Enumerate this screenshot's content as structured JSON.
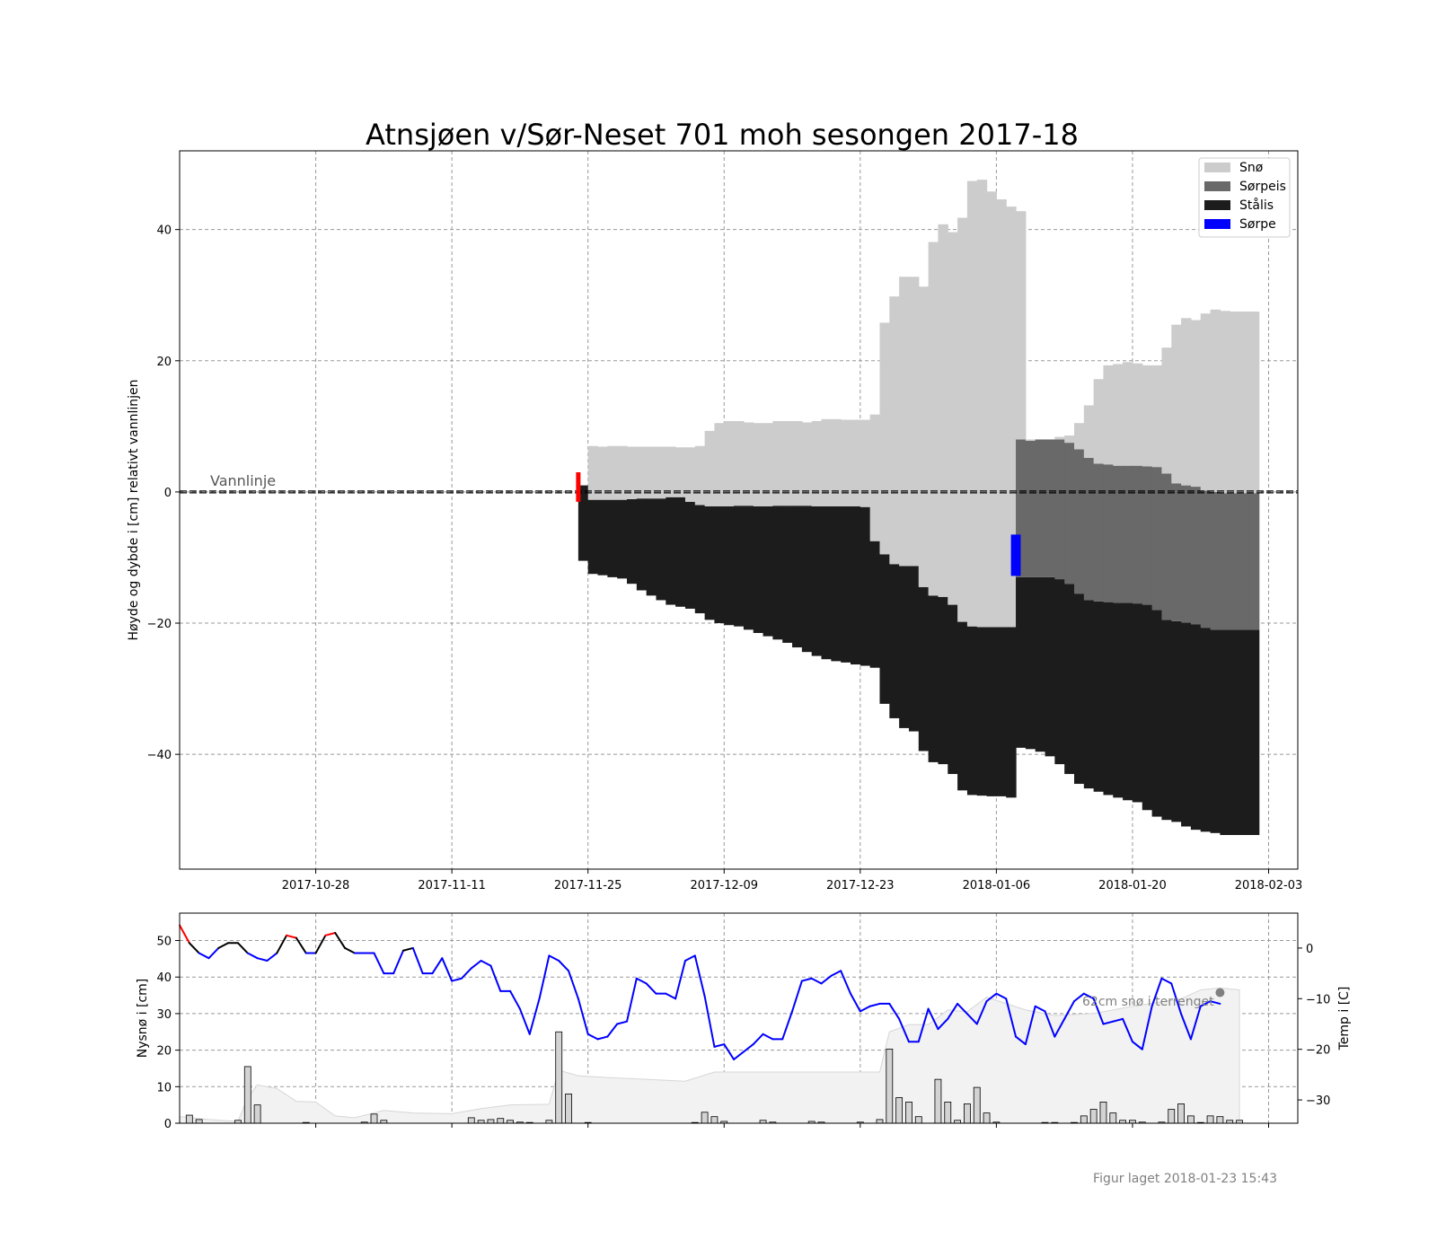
{
  "chart_data": [
    {
      "type": "bar",
      "title": "Atnsjøen v/Sør-Neset 701 moh sesongen 2017-18",
      "ylabel": "Høyde og dybde i [cm] relativt vannlinjen",
      "xlabel": "",
      "ylim": [
        -57.5,
        52
      ],
      "xlim": [
        "2017-10-14",
        "2018-02-06"
      ],
      "x_ticks": [
        "2017-10-28",
        "2017-11-11",
        "2017-11-25",
        "2017-12-09",
        "2017-12-23",
        "2018-01-06",
        "2018-01-20",
        "2018-02-03"
      ],
      "y_ticks": [
        -40,
        -20,
        0,
        20,
        40
      ],
      "grid": true,
      "legend_position": "top-right",
      "waterline_label": "Vannlinje",
      "waterline_value": 0,
      "colors": {
        "sno": "#cccccc",
        "sorpeis": "#696969",
        "stalis": "#1c1c1c",
        "sorpe": "#0000ff",
        "start": "#ff0000"
      },
      "series": [
        {
          "name": "Snø",
          "color": "#cccccc"
        },
        {
          "name": "Sørpeis",
          "color": "#696969"
        },
        {
          "name": "Stålis",
          "color": "#1c1c1c"
        },
        {
          "name": "Sørpe",
          "color": "#0000ff"
        }
      ],
      "ice_start": {
        "date": "2017-11-24",
        "from": -1.5,
        "to": 3
      },
      "dates": [
        "2017-11-24",
        "2017-11-25",
        "2017-11-26",
        "2017-11-27",
        "2017-11-28",
        "2017-11-29",
        "2017-11-30",
        "2017-12-01",
        "2017-12-02",
        "2017-12-03",
        "2017-12-04",
        "2017-12-05",
        "2017-12-06",
        "2017-12-07",
        "2017-12-08",
        "2017-12-09",
        "2017-12-10",
        "2017-12-11",
        "2017-12-12",
        "2017-12-13",
        "2017-12-14",
        "2017-12-15",
        "2017-12-16",
        "2017-12-17",
        "2017-12-18",
        "2017-12-19",
        "2017-12-20",
        "2017-12-21",
        "2017-12-22",
        "2017-12-23",
        "2017-12-24",
        "2017-12-25",
        "2017-12-26",
        "2017-12-27",
        "2017-12-28",
        "2017-12-29",
        "2017-12-30",
        "2017-12-31",
        "2018-01-01",
        "2018-01-02",
        "2018-01-03",
        "2018-01-04",
        "2018-01-05",
        "2018-01-06",
        "2018-01-07",
        "2018-01-08",
        "2018-01-09",
        "2018-01-10",
        "2018-01-11",
        "2018-01-12",
        "2018-01-13",
        "2018-01-14",
        "2018-01-15",
        "2018-01-16",
        "2018-01-17",
        "2018-01-18",
        "2018-01-19",
        "2018-01-20",
        "2018-01-21",
        "2018-01-22",
        "2018-01-23",
        "2018-01-24",
        "2018-01-25",
        "2018-01-26",
        "2018-01-27",
        "2018-01-28",
        "2018-01-29",
        "2018-01-30",
        "2018-01-31",
        "2018-02-01"
      ],
      "stalis_top": [
        1,
        -1.2,
        -1.2,
        -1.2,
        -1.2,
        -1.1,
        -1.0,
        -1.0,
        -1.0,
        -0.8,
        -0.8,
        -1.5,
        -2.0,
        -2.2,
        -2.2,
        -2.2,
        -2.1,
        -2.1,
        -2.2,
        -2.2,
        -2.1,
        -2.1,
        -2.1,
        -2.1,
        -2.2,
        -2.2,
        -2.2,
        -2.2,
        -2.2,
        -2.3,
        -7.5,
        -9.5,
        -11.0,
        -11.3,
        -11.3,
        -14.5,
        -15.8,
        -16.0,
        -17.2,
        -19.8,
        -20.5,
        -20.6,
        -20.6,
        -20.6,
        -20.6,
        -13.0,
        -13.0,
        -13.0,
        -13.0,
        -13.3,
        -14.0,
        -15.5,
        -16.5,
        -16.7,
        -16.8,
        -16.9,
        -16.9,
        -17.0,
        -17.2,
        -18.0,
        -19.5,
        -19.7,
        -19.9,
        -20.2,
        -20.7,
        -21.0,
        -21.0,
        -21.0,
        -21.0,
        -21.0
      ],
      "stalis_bottom": [
        -10.5,
        -12.5,
        -12.7,
        -13.0,
        -13.2,
        -14.0,
        -15.0,
        -15.8,
        -16.5,
        -17.2,
        -17.5,
        -17.8,
        -18.5,
        -19.5,
        -20.0,
        -20.3,
        -20.5,
        -21.0,
        -21.5,
        -22.0,
        -22.5,
        -23.0,
        -23.7,
        -24.4,
        -25.0,
        -25.5,
        -25.8,
        -26.0,
        -26.3,
        -26.5,
        -26.8,
        -32.3,
        -34.5,
        -36.0,
        -36.5,
        -39.5,
        -41.2,
        -41.5,
        -43.0,
        -45.5,
        -46.2,
        -46.3,
        -46.4,
        -46.4,
        -46.6,
        -39.0,
        -39.2,
        -39.6,
        -40.3,
        -41.5,
        -43.0,
        -44.5,
        -45.2,
        -45.7,
        -46.2,
        -46.6,
        -47.0,
        -47.3,
        -48.5,
        -49.5,
        -50.0,
        -50.3,
        -51.0,
        -51.5,
        -51.8,
        -52.0,
        -52.3,
        -52.3,
        -52.3,
        -52.3
      ],
      "sorpeis_top": [
        null,
        null,
        null,
        null,
        null,
        null,
        null,
        null,
        null,
        null,
        null,
        null,
        null,
        null,
        null,
        null,
        null,
        null,
        null,
        null,
        null,
        null,
        null,
        null,
        null,
        null,
        null,
        null,
        null,
        null,
        null,
        null,
        null,
        null,
        null,
        null,
        null,
        null,
        null,
        null,
        null,
        null,
        null,
        null,
        null,
        8.0,
        7.8,
        8.0,
        8.0,
        8.0,
        7.5,
        6.5,
        5.2,
        4.3,
        4.2,
        4.0,
        4.0,
        4.0,
        3.9,
        3.8,
        2.8,
        1.3,
        1.0,
        0.8,
        0.2,
        0,
        -0.2,
        -0.2,
        -0.2,
        -0.2
      ],
      "sno_top": [
        1,
        7.0,
        6.9,
        7.0,
        7.0,
        6.9,
        6.9,
        6.9,
        6.9,
        6.9,
        6.8,
        6.8,
        7.0,
        9.3,
        10.5,
        10.8,
        10.8,
        10.6,
        10.5,
        10.5,
        10.8,
        10.8,
        10.8,
        10.6,
        10.8,
        11.1,
        11.1,
        11.0,
        11.0,
        11.0,
        11.8,
        25.8,
        29.8,
        32.8,
        32.8,
        31.3,
        38.1,
        40.8,
        39.6,
        41.8,
        47.4,
        47.6,
        45.8,
        44.6,
        43.5,
        42.8,
        8.0,
        8.0,
        8.0,
        8.4,
        8.6,
        10.5,
        13.2,
        17.2,
        19.3,
        19.5,
        19.8,
        19.6,
        19.3,
        19.3,
        22.0,
        25.5,
        26.5,
        26.2,
        27.2,
        27.8,
        27.6,
        27.5,
        27.5,
        27.5
      ],
      "sorpe": {
        "date": "2018-01-08",
        "from": -12.8,
        "to": -6.5
      }
    },
    {
      "type": "bar",
      "xlabel": "",
      "ylabel": "Nysnø i [cm]",
      "ylabel_right": "Temp i [C]",
      "ylim": [
        0,
        57.5
      ],
      "ylim_right": [
        -34.6,
        6.9
      ],
      "y_ticks": [
        0,
        10,
        20,
        30,
        40,
        50
      ],
      "y_ticks_right": [
        0,
        -10,
        -20,
        -30
      ],
      "grid": true,
      "annotation": "62cm snø i terrenget",
      "colors": {
        "bars": "#d3d3d3",
        "area": "#f2f2f2",
        "temp": "#0000ff",
        "warm": "#ff0000",
        "near_zero": "#000000",
        "marker": "#808080"
      },
      "new_snow": [
        {
          "date": "2017-10-15",
          "value": 2.2
        },
        {
          "date": "2017-10-16",
          "value": 1.0
        },
        {
          "date": "2017-10-20",
          "value": 0.8
        },
        {
          "date": "2017-10-21",
          "value": 15.5
        },
        {
          "date": "2017-10-22",
          "value": 5.0
        },
        {
          "date": "2017-10-27",
          "value": 0.2
        },
        {
          "date": "2017-11-02",
          "value": 0.3
        },
        {
          "date": "2017-11-03",
          "value": 2.5
        },
        {
          "date": "2017-11-04",
          "value": 0.8
        },
        {
          "date": "2017-11-13",
          "value": 1.5
        },
        {
          "date": "2017-11-14",
          "value": 0.8
        },
        {
          "date": "2017-11-15",
          "value": 1.0
        },
        {
          "date": "2017-11-16",
          "value": 1.3
        },
        {
          "date": "2017-11-17",
          "value": 0.8
        },
        {
          "date": "2017-11-18",
          "value": 0.3
        },
        {
          "date": "2017-11-19",
          "value": 0.2
        },
        {
          "date": "2017-11-21",
          "value": 0.8
        },
        {
          "date": "2017-11-22",
          "value": 25.0
        },
        {
          "date": "2017-11-23",
          "value": 8.0
        },
        {
          "date": "2017-11-25",
          "value": 0.2
        },
        {
          "date": "2017-12-06",
          "value": 0.2
        },
        {
          "date": "2017-12-07",
          "value": 3.0
        },
        {
          "date": "2017-12-08",
          "value": 1.8
        },
        {
          "date": "2017-12-09",
          "value": 0.5
        },
        {
          "date": "2017-12-13",
          "value": 0.8
        },
        {
          "date": "2017-12-14",
          "value": 0.3
        },
        {
          "date": "2017-12-18",
          "value": 0.5
        },
        {
          "date": "2017-12-19",
          "value": 0.3
        },
        {
          "date": "2017-12-23",
          "value": 0.3
        },
        {
          "date": "2017-12-25",
          "value": 1.0
        },
        {
          "date": "2017-12-26",
          "value": 20.3
        },
        {
          "date": "2017-12-27",
          "value": 7.0
        },
        {
          "date": "2017-12-28",
          "value": 5.8
        },
        {
          "date": "2017-12-29",
          "value": 1.8
        },
        {
          "date": "2017-12-31",
          "value": 12.0
        },
        {
          "date": "2018-01-01",
          "value": 5.8
        },
        {
          "date": "2018-01-02",
          "value": 0.8
        },
        {
          "date": "2018-01-03",
          "value": 5.3
        },
        {
          "date": "2018-01-04",
          "value": 9.8
        },
        {
          "date": "2018-01-05",
          "value": 2.8
        },
        {
          "date": "2018-01-06",
          "value": 0.3
        },
        {
          "date": "2018-01-11",
          "value": 0.2
        },
        {
          "date": "2018-01-12",
          "value": 0.2
        },
        {
          "date": "2018-01-14",
          "value": 0.2
        },
        {
          "date": "2018-01-15",
          "value": 2.0
        },
        {
          "date": "2018-01-16",
          "value": 3.8
        },
        {
          "date": "2018-01-17",
          "value": 5.8
        },
        {
          "date": "2018-01-18",
          "value": 2.8
        },
        {
          "date": "2018-01-19",
          "value": 0.8
        },
        {
          "date": "2018-01-20",
          "value": 0.8
        },
        {
          "date": "2018-01-21",
          "value": 0.3
        },
        {
          "date": "2018-01-23",
          "value": 0.3
        },
        {
          "date": "2018-01-24",
          "value": 3.8
        },
        {
          "date": "2018-01-25",
          "value": 5.3
        },
        {
          "date": "2018-01-26",
          "value": 2.0
        },
        {
          "date": "2018-01-27",
          "value": 0.2
        },
        {
          "date": "2018-01-28",
          "value": 2.0
        },
        {
          "date": "2018-01-29",
          "value": 1.8
        },
        {
          "date": "2018-01-30",
          "value": 0.8
        },
        {
          "date": "2018-01-31",
          "value": 0.8
        }
      ],
      "snow_depth_dates": [
        "2017-10-14",
        "2017-10-17",
        "2017-10-20",
        "2017-10-21",
        "2017-10-22",
        "2017-10-24",
        "2017-10-26",
        "2017-10-28",
        "2017-10-30",
        "2017-11-01",
        "2017-11-04",
        "2017-11-07",
        "2017-11-11",
        "2017-11-14",
        "2017-11-17",
        "2017-11-21",
        "2017-11-22",
        "2017-11-24",
        "2017-11-27",
        "2017-12-01",
        "2017-12-05",
        "2017-12-08",
        "2017-12-15",
        "2017-12-22",
        "2017-12-25",
        "2017-12-26",
        "2017-12-28",
        "2017-12-30",
        "2018-01-01",
        "2018-01-03",
        "2018-01-05",
        "2018-01-09",
        "2018-01-12",
        "2018-01-16",
        "2018-01-20",
        "2018-01-25",
        "2018-01-27",
        "2018-01-29",
        "2018-01-31"
      ],
      "snow_depth": [
        1.8,
        1.0,
        0.5,
        7.0,
        10.5,
        9.5,
        6.0,
        5.8,
        2.0,
        1.5,
        3.5,
        2.8,
        2.6,
        4.0,
        5.0,
        5.2,
        14.5,
        13.0,
        12.5,
        12.0,
        11.5,
        14.0,
        14.0,
        14.0,
        14.0,
        25.0,
        27.0,
        27.0,
        31.0,
        30.5,
        34.5,
        31.0,
        29.5,
        30.0,
        32.0,
        34.0,
        36.5,
        37.0,
        36.5
      ],
      "temp_dates": [
        "2017-10-14",
        "2017-10-15",
        "2017-10-16",
        "2017-10-17",
        "2017-10-18",
        "2017-10-19",
        "2017-10-20",
        "2017-10-21",
        "2017-10-22",
        "2017-10-23",
        "2017-10-24",
        "2017-10-25",
        "2017-10-26",
        "2017-10-27",
        "2017-10-28",
        "2017-10-29",
        "2017-10-30",
        "2017-10-31",
        "2017-11-01",
        "2017-11-02",
        "2017-11-03",
        "2017-11-04",
        "2017-11-05",
        "2017-11-06",
        "2017-11-07",
        "2017-11-08",
        "2017-11-09",
        "2017-11-10",
        "2017-11-11",
        "2017-11-12",
        "2017-11-13",
        "2017-11-14",
        "2017-11-15",
        "2017-11-16",
        "2017-11-17",
        "2017-11-18",
        "2017-11-19",
        "2017-11-20",
        "2017-11-21",
        "2017-11-22",
        "2017-11-23",
        "2017-11-24",
        "2017-11-25",
        "2017-11-26",
        "2017-11-27",
        "2017-11-28",
        "2017-11-29",
        "2017-11-30",
        "2017-12-01",
        "2017-12-02",
        "2017-12-03",
        "2017-12-04",
        "2017-12-05",
        "2017-12-06",
        "2017-12-07",
        "2017-12-08",
        "2017-12-09",
        "2017-12-10",
        "2017-12-11",
        "2017-12-12",
        "2017-12-13",
        "2017-12-14",
        "2017-12-15",
        "2017-12-16",
        "2017-12-17",
        "2017-12-18",
        "2017-12-19",
        "2017-12-20",
        "2017-12-21",
        "2017-12-22",
        "2017-12-23",
        "2017-12-24",
        "2017-12-25",
        "2017-12-26",
        "2017-12-27",
        "2017-12-28",
        "2017-12-29",
        "2017-12-30",
        "2017-12-31",
        "2018-01-01",
        "2018-01-02",
        "2018-01-03",
        "2018-01-04",
        "2018-01-05",
        "2018-01-06",
        "2018-01-07",
        "2018-01-08",
        "2018-01-09",
        "2018-01-10",
        "2018-01-11",
        "2018-01-12",
        "2018-01-13",
        "2018-01-14",
        "2018-01-15",
        "2018-01-16",
        "2018-01-17",
        "2018-01-18",
        "2018-01-19",
        "2018-01-20",
        "2018-01-21",
        "2018-01-22",
        "2018-01-23",
        "2018-01-24",
        "2018-01-25",
        "2018-01-26",
        "2018-01-27",
        "2018-01-28",
        "2018-01-29",
        "2018-01-30",
        "2018-01-31"
      ],
      "temp": [
        4.5,
        1.0,
        -1.0,
        -2.0,
        0,
        1.0,
        1.0,
        -1.0,
        -2.0,
        -2.5,
        -1.0,
        2.5,
        2.0,
        -1.0,
        -1.0,
        2.5,
        3.0,
        0,
        -1.0,
        -1.0,
        -1.0,
        -5.0,
        -5.0,
        -0.5,
        0,
        -5.0,
        -5.0,
        -2.0,
        -6.5,
        -6.0,
        -4.0,
        -2.5,
        -3.5,
        -8.5,
        -8.5,
        -12.0,
        -17.0,
        -10.0,
        -1.5,
        -2.5,
        -4.5,
        -10.0,
        -17.0,
        -18.0,
        -17.5,
        -15.0,
        -14.5,
        -6.0,
        -7.0,
        -9.0,
        -9.0,
        -10.0,
        -2.5,
        -1.5,
        -9.5,
        -19.5,
        -19.0,
        -22.0,
        -20.5,
        -19.0,
        -17.0,
        -18.0,
        -18.0,
        -12.5,
        -6.5,
        -6.0,
        -7.0,
        -5.5,
        -4.5,
        -9.0,
        -12.5,
        -11.5,
        -11.0,
        -11.0,
        -14.0,
        -18.5,
        -18.5,
        -12.0,
        -16.0,
        -14.0,
        -11.0,
        -13.0,
        -15.0,
        -10.5,
        -9.0,
        -10.0,
        -17.5,
        -19.0,
        -11.5,
        -12.5,
        -17.5,
        -14.0,
        -10.5,
        -9.0,
        -10.0,
        -15.0,
        -14.5,
        -14.0,
        -18.5,
        -20.0,
        -11.5,
        -6.0,
        -7.0,
        -13.0,
        -18.0,
        -11.5,
        -10.5,
        -11.0
      ],
      "marker": {
        "date": "2018-01-29",
        "value": -8.8
      }
    }
  ],
  "footer": "Figur laget 2018-01-23 15:43"
}
